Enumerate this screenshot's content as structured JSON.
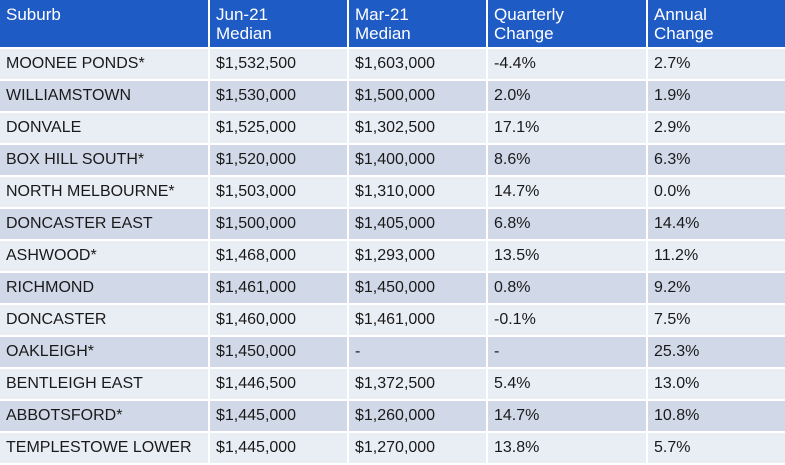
{
  "table": {
    "headers": [
      [
        "Suburb"
      ],
      [
        "Jun-21",
        "Median"
      ],
      [
        "Mar-21",
        "Median"
      ],
      [
        "Quarterly",
        "Change"
      ],
      [
        "Annual",
        "Change"
      ]
    ],
    "rows": [
      [
        "MOONEE PONDS*",
        "$1,532,500",
        "$1,603,000",
        "-4.4%",
        "2.7%"
      ],
      [
        "WILLIAMSTOWN",
        "$1,530,000",
        "$1,500,000",
        "2.0%",
        "1.9%"
      ],
      [
        "DONVALE",
        "$1,525,000",
        "$1,302,500",
        "17.1%",
        "2.9%"
      ],
      [
        "BOX HILL SOUTH*",
        "$1,520,000",
        "$1,400,000",
        "8.6%",
        "6.3%"
      ],
      [
        "NORTH MELBOURNE*",
        "$1,503,000",
        "$1,310,000",
        "14.7%",
        "0.0%"
      ],
      [
        "DONCASTER EAST",
        "$1,500,000",
        "$1,405,000",
        "6.8%",
        "14.4%"
      ],
      [
        "ASHWOOD*",
        "$1,468,000",
        "$1,293,000",
        "13.5%",
        "11.2%"
      ],
      [
        "RICHMOND",
        "$1,461,000",
        "$1,450,000",
        "0.8%",
        "9.2%"
      ],
      [
        "DONCASTER",
        "$1,460,000",
        "$1,461,000",
        "-0.1%",
        "7.5%"
      ],
      [
        "OAKLEIGH*",
        "$1,450,000",
        "-",
        "-",
        "25.3%"
      ],
      [
        "BENTLEIGH EAST",
        "$1,446,500",
        "$1,372,500",
        "5.4%",
        "13.0%"
      ],
      [
        "ABBOTSFORD*",
        "$1,445,000",
        "$1,260,000",
        "14.7%",
        "10.8%"
      ],
      [
        "TEMPLESTOWE LOWER",
        "$1,445,000",
        "$1,270,000",
        "13.8%",
        "5.7%"
      ]
    ]
  },
  "colors": {
    "header_bg": "#1f5bc4",
    "row_light": "#e9edf4",
    "row_dark": "#d1d9e8"
  }
}
